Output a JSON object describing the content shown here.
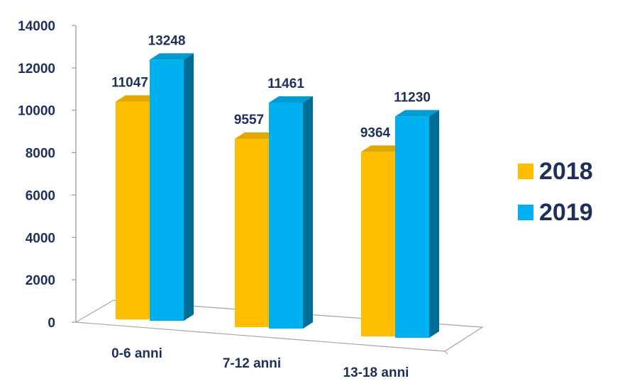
{
  "chart_data": {
    "type": "bar",
    "categories": [
      "0-6 anni",
      "7-12 anni",
      "13-18 anni"
    ],
    "series": [
      {
        "name": "2018",
        "values": [
          11047,
          9557,
          9364
        ],
        "color": "#ffbf00"
      },
      {
        "name": "2019",
        "values": [
          13248,
          11461,
          11230
        ],
        "color": "#00b0f0"
      }
    ],
    "yticks": [
      "0",
      "2000",
      "4000",
      "6000",
      "8000",
      "10000",
      "12000",
      "14000"
    ],
    "ylim": [
      0,
      14000
    ],
    "title": "",
    "xlabel": "",
    "ylabel": "",
    "legend_position": "right",
    "grid": false,
    "style": "3d-column"
  }
}
